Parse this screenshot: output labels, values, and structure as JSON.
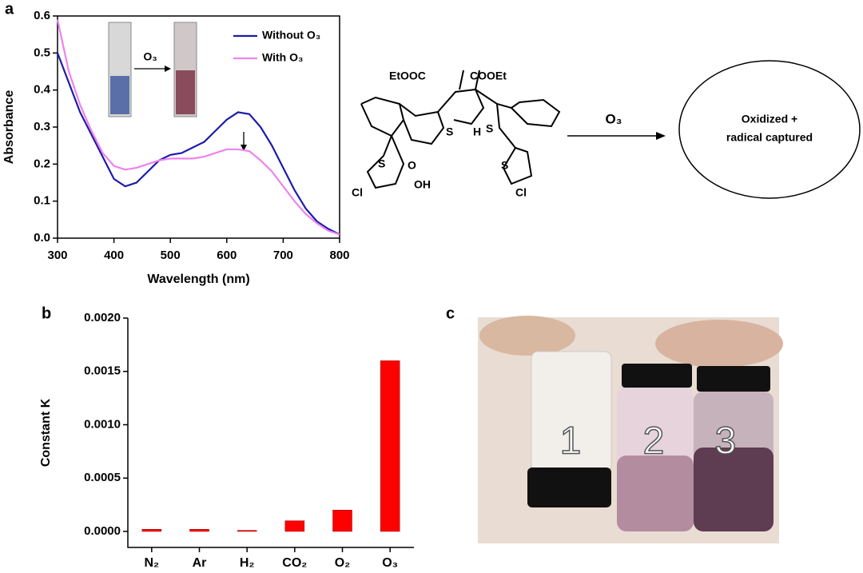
{
  "panels": [
    "a",
    "b",
    "c"
  ],
  "chart_data": [
    {
      "type": "line",
      "x_label": "Wavelength (nm)",
      "y_label": "Absorbance",
      "annotation": "O₃",
      "x": [
        300,
        320,
        340,
        360,
        380,
        400,
        420,
        440,
        460,
        480,
        500,
        520,
        540,
        560,
        580,
        600,
        620,
        640,
        660,
        680,
        700,
        720,
        740,
        760,
        780,
        800
      ],
      "series": [
        {
          "name": "Without O₃",
          "color": "#1c1ca8",
          "values": [
            0.5,
            0.42,
            0.34,
            0.28,
            0.22,
            0.16,
            0.14,
            0.15,
            0.18,
            0.21,
            0.225,
            0.23,
            0.245,
            0.26,
            0.29,
            0.32,
            0.34,
            0.335,
            0.3,
            0.25,
            0.19,
            0.13,
            0.08,
            0.045,
            0.025,
            0.01
          ]
        },
        {
          "name": "With O₃",
          "color": "#ee82ee",
          "values": [
            0.59,
            0.45,
            0.36,
            0.29,
            0.23,
            0.195,
            0.185,
            0.19,
            0.2,
            0.21,
            0.215,
            0.215,
            0.215,
            0.22,
            0.23,
            0.24,
            0.24,
            0.235,
            0.21,
            0.18,
            0.14,
            0.1,
            0.065,
            0.04,
            0.02,
            0.01
          ]
        }
      ],
      "xlim": [
        300,
        800
      ],
      "xticks": [
        300,
        400,
        500,
        600,
        700,
        800
      ],
      "ylim": [
        0,
        0.6
      ],
      "yticks": [
        {
          "value": 0,
          "label": "0.0"
        },
        0.1,
        0.2,
        0.3,
        0.4,
        0.5,
        0.6
      ],
      "legend": "upper right"
    },
    {
      "type": "bar",
      "y_label": "Constant K",
      "categories": [
        "N₂",
        "Ar",
        "H₂",
        "CO₂",
        "O₂",
        "O₃"
      ],
      "values": [
        2e-05,
        2e-05,
        1e-05,
        0.0001,
        0.0002,
        0.0016
      ],
      "color": "#ff0000",
      "ylim": [
        -0.00015,
        0.002
      ],
      "yticks": [
        {
          "value": 0,
          "label": "0.0000"
        },
        {
          "value": 0.0005,
          "label": "0.0005"
        },
        {
          "value": 0.001,
          "label": "0.0010"
        },
        {
          "value": 0.0015,
          "label": "0.0015"
        },
        {
          "value": 0.002,
          "label": "0.0020"
        }
      ]
    }
  ],
  "scheme": {
    "atoms": [
      "EtOOC",
      "COOEt",
      "S",
      "S",
      "S",
      "S",
      "H",
      "Cl",
      "Cl",
      "O",
      "OH"
    ],
    "arrow_label": "O₃",
    "product": [
      "Oxidized +",
      "radical captured"
    ]
  },
  "photo": {
    "vials": [
      "1",
      "2",
      "3"
    ]
  }
}
